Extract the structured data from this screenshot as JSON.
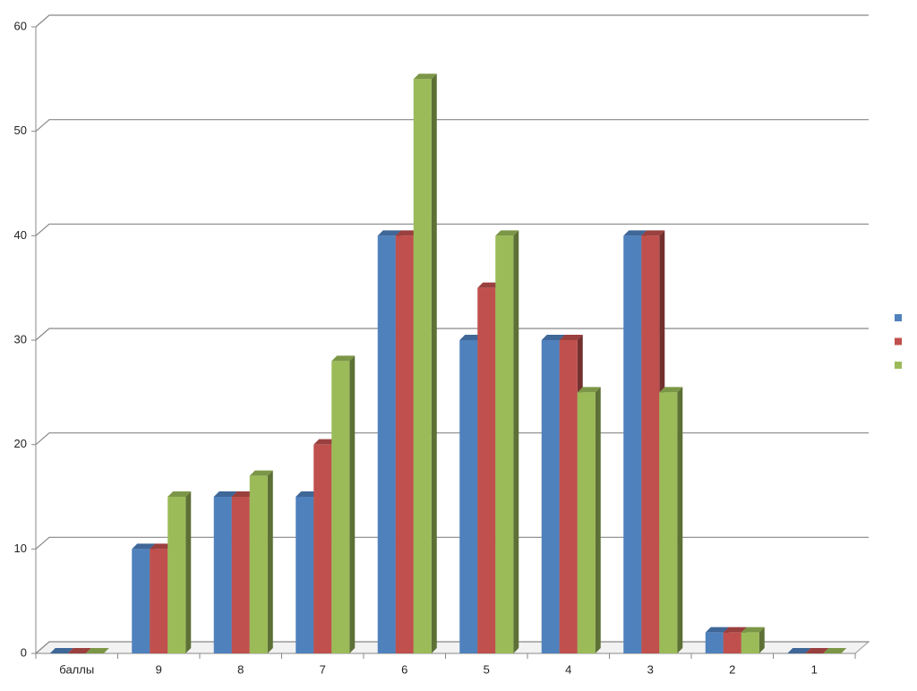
{
  "chart_data": {
    "type": "bar3d",
    "categories": [
      "баллы",
      "9",
      "8",
      "7",
      "6",
      "5",
      "4",
      "3",
      "2",
      "1"
    ],
    "series": [
      {
        "color": "#4f81bd",
        "values": [
          0,
          10,
          15,
          15,
          40,
          30,
          30,
          40,
          2,
          0
        ]
      },
      {
        "color": "#c0504d",
        "values": [
          0,
          10,
          15,
          20,
          40,
          35,
          30,
          40,
          2,
          0
        ]
      },
      {
        "color": "#9bbb59",
        "values": [
          0,
          15,
          17,
          28,
          55,
          40,
          25,
          25,
          2,
          0
        ]
      }
    ],
    "ylim": [
      0,
      60
    ],
    "yticks": [
      0,
      10,
      20,
      30,
      40,
      50,
      60
    ],
    "grid": true,
    "legend": "right"
  }
}
